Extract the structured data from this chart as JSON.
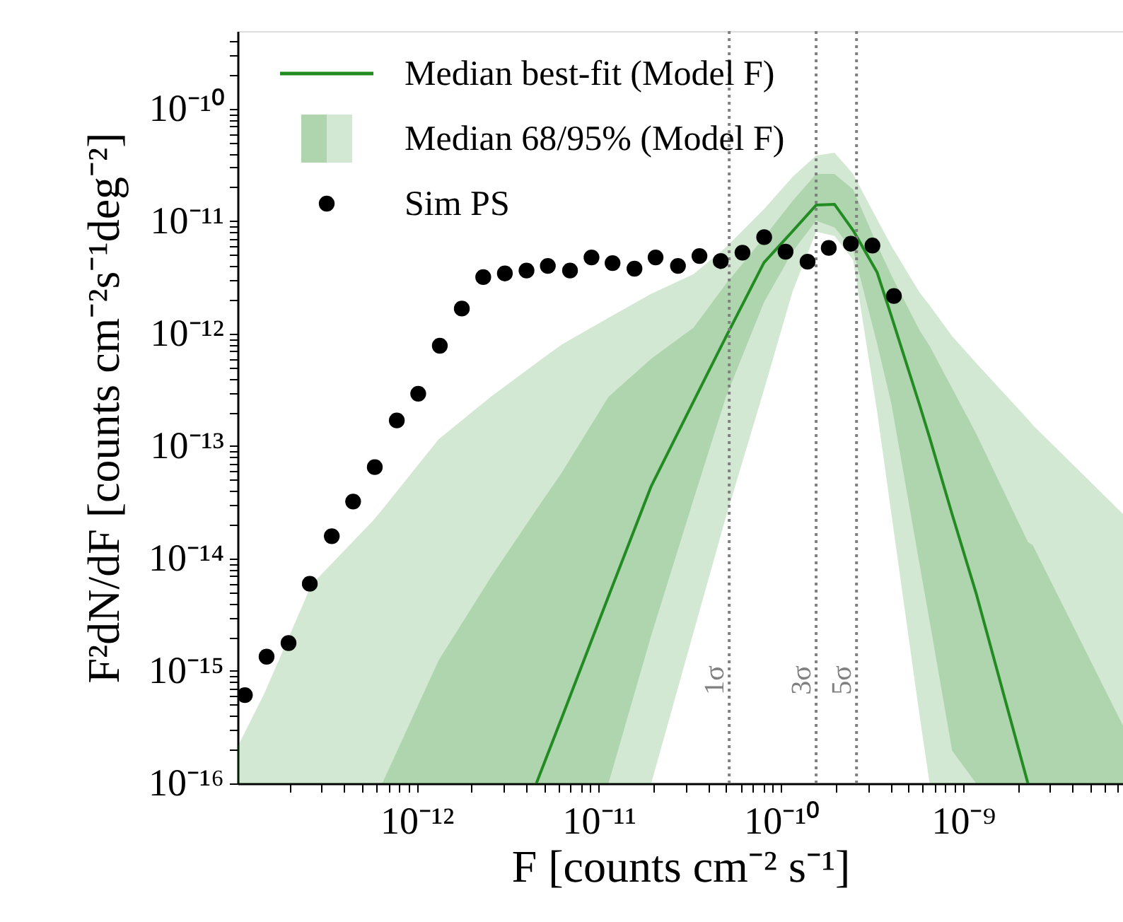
{
  "chart_data": {
    "type": "line",
    "xlabel": "F [counts cm⁻² s⁻¹]",
    "ylabel": "F²dN/dF [counts cm⁻²s⁻¹deg⁻²]",
    "log": "xy",
    "legend": "top left",
    "xlim": [
      1.04e-13,
      7.55e-09
    ],
    "ylim": [
      1e-16,
      4.9e-10
    ],
    "xticks": [
      {
        "value": 2e-13,
        "label": null
      },
      {
        "value": 3e-13,
        "label": null
      },
      {
        "value": 4e-13,
        "label": null
      },
      {
        "value": 5e-13,
        "label": null
      },
      {
        "value": 6e-13,
        "label": null
      },
      {
        "value": 7e-13,
        "label": null
      },
      {
        "value": 8e-13,
        "label": null
      },
      {
        "value": 9e-13,
        "label": null
      },
      {
        "value": 1e-12,
        "label": "10⁻¹²"
      },
      {
        "value": 2e-12,
        "label": null
      },
      {
        "value": 3e-12,
        "label": null
      },
      {
        "value": 4e-12,
        "label": null
      },
      {
        "value": 5e-12,
        "label": null
      },
      {
        "value": 6e-12,
        "label": null
      },
      {
        "value": 7e-12,
        "label": null
      },
      {
        "value": 8e-12,
        "label": null
      },
      {
        "value": 9e-12,
        "label": null
      },
      {
        "value": 1e-11,
        "label": "10⁻¹¹"
      },
      {
        "value": 2e-11,
        "label": null
      },
      {
        "value": 3e-11,
        "label": null
      },
      {
        "value": 4e-11,
        "label": null
      },
      {
        "value": 5e-11,
        "label": null
      },
      {
        "value": 6e-11,
        "label": null
      },
      {
        "value": 7e-11,
        "label": null
      },
      {
        "value": 8e-11,
        "label": null
      },
      {
        "value": 9e-11,
        "label": null
      },
      {
        "value": 1e-10,
        "label": "10⁻¹⁰"
      },
      {
        "value": 2e-10,
        "label": null
      },
      {
        "value": 3e-10,
        "label": null
      },
      {
        "value": 4e-10,
        "label": null
      },
      {
        "value": 5e-10,
        "label": null
      },
      {
        "value": 6e-10,
        "label": null
      },
      {
        "value": 7e-10,
        "label": null
      },
      {
        "value": 8e-10,
        "label": null
      },
      {
        "value": 9e-10,
        "label": null
      },
      {
        "value": 1e-09,
        "label": "10⁻⁹"
      },
      {
        "value": 2e-09,
        "label": null
      },
      {
        "value": 3e-09,
        "label": null
      },
      {
        "value": 4e-09,
        "label": null
      },
      {
        "value": 5e-09,
        "label": null
      },
      {
        "value": 6e-09,
        "label": null
      },
      {
        "value": 7e-09,
        "label": null
      }
    ],
    "yticks": [
      {
        "value": 1e-16,
        "label": "10⁻¹⁶"
      },
      {
        "value": 2e-16,
        "label": null
      },
      {
        "value": 3e-16,
        "label": null
      },
      {
        "value": 4e-16,
        "label": null
      },
      {
        "value": 5e-16,
        "label": null
      },
      {
        "value": 6e-16,
        "label": null
      },
      {
        "value": 7e-16,
        "label": null
      },
      {
        "value": 8e-16,
        "label": null
      },
      {
        "value": 9e-16,
        "label": null
      },
      {
        "value": 1e-15,
        "label": "10⁻¹⁵"
      },
      {
        "value": 2e-15,
        "label": null
      },
      {
        "value": 3e-15,
        "label": null
      },
      {
        "value": 4e-15,
        "label": null
      },
      {
        "value": 5e-15,
        "label": null
      },
      {
        "value": 6e-15,
        "label": null
      },
      {
        "value": 7e-15,
        "label": null
      },
      {
        "value": 8e-15,
        "label": null
      },
      {
        "value": 9e-15,
        "label": null
      },
      {
        "value": 1e-14,
        "label": "10⁻¹⁴"
      },
      {
        "value": 2e-14,
        "label": null
      },
      {
        "value": 3e-14,
        "label": null
      },
      {
        "value": 4e-14,
        "label": null
      },
      {
        "value": 5e-14,
        "label": null
      },
      {
        "value": 6e-14,
        "label": null
      },
      {
        "value": 7e-14,
        "label": null
      },
      {
        "value": 8e-14,
        "label": null
      },
      {
        "value": 9e-14,
        "label": null
      },
      {
        "value": 1e-13,
        "label": "10⁻¹³"
      },
      {
        "value": 2e-13,
        "label": null
      },
      {
        "value": 3e-13,
        "label": null
      },
      {
        "value": 4e-13,
        "label": null
      },
      {
        "value": 5e-13,
        "label": null
      },
      {
        "value": 6e-13,
        "label": null
      },
      {
        "value": 7e-13,
        "label": null
      },
      {
        "value": 8e-13,
        "label": null
      },
      {
        "value": 9e-13,
        "label": null
      },
      {
        "value": 1e-12,
        "label": "10⁻¹²"
      },
      {
        "value": 2e-12,
        "label": null
      },
      {
        "value": 3e-12,
        "label": null
      },
      {
        "value": 4e-12,
        "label": null
      },
      {
        "value": 5e-12,
        "label": null
      },
      {
        "value": 6e-12,
        "label": null
      },
      {
        "value": 7e-12,
        "label": null
      },
      {
        "value": 8e-12,
        "label": null
      },
      {
        "value": 9e-12,
        "label": null
      },
      {
        "value": 1e-11,
        "label": "10⁻¹¹"
      },
      {
        "value": 2e-11,
        "label": null
      },
      {
        "value": 3e-11,
        "label": null
      },
      {
        "value": 4e-11,
        "label": null
      },
      {
        "value": 5e-11,
        "label": null
      },
      {
        "value": 6e-11,
        "label": null
      },
      {
        "value": 7e-11,
        "label": null
      },
      {
        "value": 8e-11,
        "label": null
      },
      {
        "value": 9e-11,
        "label": null
      },
      {
        "value": 1e-10,
        "label": "10⁻¹⁰"
      },
      {
        "value": 2e-10,
        "label": null
      },
      {
        "value": 3e-10,
        "label": null
      },
      {
        "value": 4e-10,
        "label": null
      }
    ],
    "series": [
      {
        "name": "Median best-fit (Model F)",
        "color": "#228b22",
        "line_style": "solid",
        "marker": "none",
        "x": [
          1.04e-13,
          1.46e-13,
          2.65e-13,
          5.74e-13,
          6.47e-13,
          1.32e-12,
          2.55e-12,
          4.54e-12,
          6.24e-12,
          1.13e-11,
          1.94e-11,
          3.31e-11,
          4.99e-11,
          8.07e-11,
          1.16e-10,
          1.56e-10,
          1.97e-10,
          2.49e-10,
          3.37e-10,
          4.04e-10,
          5.77e-10,
          6.55e-10,
          8.71e-10,
          1.18e-09,
          2.27e-09,
          2.41e-09,
          7.55e-09
        ],
        "values": [
          null,
          null,
          null,
          null,
          null,
          null,
          null,
          1e-16,
          3.78e-16,
          4.61e-15,
          4.4e-14,
          2.49e-13,
          9.37e-13,
          4.28e-12,
          8.15e-12,
          1.39e-11,
          1.41e-11,
          8.28e-12,
          3.52e-12,
          1.43e-12,
          2.32e-13,
          1.19e-13,
          2.47e-14,
          4.89e-15,
          1e-16,
          null,
          null
        ],
        "lower": [
          1e-16,
          1e-16,
          1e-16,
          1e-16,
          1e-16,
          1e-16,
          1e-16,
          1e-16,
          1e-16,
          1e-16,
          2.07e-15,
          3.33e-14,
          2.74e-13,
          1.9e-12,
          5.37e-12,
          1.01e-11,
          8.79e-12,
          5.53e-12,
          8.22e-13,
          2.37e-13,
          8.81e-15,
          2.77e-15,
          1.95e-16,
          1e-16,
          1e-16,
          1e-16,
          1e-16
        ],
        "upper": [
          1e-16,
          1e-16,
          1e-16,
          1e-16,
          1e-16,
          1.24e-15,
          6.79e-15,
          2.72e-14,
          5.75e-14,
          2.74e-13,
          5.98e-13,
          1.13e-12,
          2.77e-12,
          7.18e-12,
          1.52e-11,
          2.63e-11,
          2.63e-11,
          1.91e-11,
          6.21e-12,
          3.29e-12,
          1.07e-12,
          7.76e-13,
          3.26e-13,
          1.29e-13,
          1.4e-14,
          1.32e-14,
          3.27e-16
        ]
      },
      {
        "name": "Median 68/95% (Model F)",
        "color": "#228b22",
        "x": [
          1.04e-13,
          1.46e-13,
          2.65e-13,
          5.74e-13,
          6.47e-13,
          1.32e-12,
          2.55e-12,
          4.54e-12,
          6.24e-12,
          1.13e-11,
          1.94e-11,
          3.31e-11,
          4.99e-11,
          8.07e-11,
          1.16e-10,
          1.56e-10,
          1.97e-10,
          2.49e-10,
          3.37e-10,
          4.04e-10,
          5.77e-10,
          6.55e-10,
          8.71e-10,
          1.18e-09,
          2.27e-09,
          2.41e-09,
          7.55e-09
        ],
        "values": [
          null,
          null,
          null,
          null,
          null,
          null,
          null,
          null,
          null,
          null,
          null,
          null,
          null,
          null,
          null,
          null,
          null,
          null,
          null,
          null,
          null,
          null,
          null,
          null,
          null,
          null,
          null
        ],
        "lower": [
          1e-16,
          1e-16,
          1e-16,
          1e-16,
          1e-16,
          1e-16,
          1e-16,
          1e-16,
          1e-16,
          1e-16,
          1e-16,
          2.2e-15,
          2.35e-14,
          3.17e-13,
          2.39e-12,
          8.05e-12,
          7.38e-12,
          4.52e-12,
          2.05e-13,
          2.49e-14,
          4e-16,
          1e-16,
          1e-16,
          1e-16,
          1e-16,
          1e-16,
          1e-16
        ],
        "upper": [
          2.12e-16,
          6.35e-16,
          5.87e-15,
          2.16e-14,
          2.72e-14,
          1.15e-13,
          2.74e-13,
          5.48e-13,
          7.98e-13,
          1.38e-12,
          2.26e-12,
          3.38e-12,
          5.86e-12,
          1.28e-11,
          2.48e-11,
          3.83e-11,
          4.06e-11,
          2.63e-11,
          1.04e-11,
          6.03e-12,
          2.32e-12,
          1.79e-12,
          9.48e-13,
          5.48e-13,
          1.73e-13,
          1.54e-13,
          2.49e-14
        ]
      },
      {
        "name": "Sim PS",
        "type": "scatter",
        "color": "#000000",
        "marker": "circle",
        "x": [
          1.14e-13,
          1.5e-13,
          1.98e-13,
          2.59e-13,
          3.42e-13,
          4.48e-13,
          5.89e-13,
          7.78e-13,
          1.02e-12,
          1.34e-12,
          1.77e-12,
          2.32e-12,
          3.05e-12,
          4.01e-12,
          5.25e-12,
          6.95e-12,
          9.12e-12,
          1.19e-11,
          1.57e-11,
          2.05e-11,
          2.72e-11,
          3.57e-11,
          4.67e-11,
          6.15e-11,
          8.09e-11,
          1.06e-10,
          1.4e-10,
          1.83e-10,
          2.42e-10,
          3.18e-10,
          4.17e-10
        ],
        "values": [
          6.1e-16,
          1.34e-15,
          1.77e-15,
          5.96e-15,
          1.58e-14,
          3.21e-14,
          6.5e-14,
          1.69e-13,
          2.92e-13,
          7.8e-13,
          1.67e-12,
          3.18e-12,
          3.43e-12,
          3.64e-12,
          4e-12,
          3.64e-12,
          4.76e-12,
          4.24e-12,
          3.78e-12,
          4.76e-12,
          4e-12,
          4.9e-12,
          4.42e-12,
          5.25e-12,
          7.21e-12,
          5.35e-12,
          4.36e-12,
          5.78e-12,
          6.3e-12,
          6.07e-12,
          2.16e-12
        ]
      }
    ],
    "ref_lines": [
      {
        "axis": "x",
        "value": 5.2e-11,
        "label": "1σ",
        "color": "#808080",
        "line_style": "dotted"
      },
      {
        "axis": "x",
        "value": 1.56e-10,
        "label": "3σ",
        "color": "#808080",
        "line_style": "dotted"
      },
      {
        "axis": "x",
        "value": 2.6e-10,
        "label": "5σ",
        "color": "#808080",
        "line_style": "dotted"
      }
    ]
  }
}
